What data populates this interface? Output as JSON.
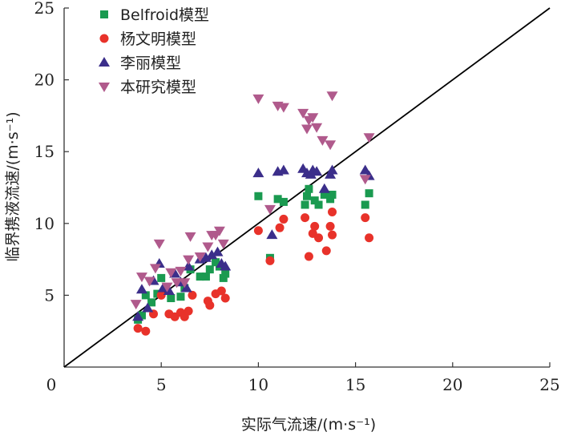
{
  "chart_data": {
    "type": "scatter",
    "xlabel": "实际气流速/(m·s⁻¹)",
    "ylabel": "临界携液流速/(m·s⁻¹)",
    "xlim": [
      0,
      25
    ],
    "ylim": [
      0,
      25
    ],
    "xticks": [
      "0",
      "5",
      "10",
      "15",
      "20",
      "25"
    ],
    "yticks": [
      "5",
      "10",
      "15",
      "20",
      "25"
    ],
    "legend_position": "top-left",
    "reference_line": {
      "type": "y=x",
      "color": "#000000"
    },
    "series": [
      {
        "name": "Belfroid模型",
        "marker": "square",
        "color": "#1a9a50",
        "points": [
          [
            3.8,
            3.3
          ],
          [
            4.0,
            3.6
          ],
          [
            4.2,
            5.0
          ],
          [
            4.5,
            4.5
          ],
          [
            4.8,
            5.1
          ],
          [
            5.0,
            6.2
          ],
          [
            5.5,
            4.8
          ],
          [
            6.0,
            4.9
          ],
          [
            6.2,
            5.5
          ],
          [
            6.5,
            6.8
          ],
          [
            7.0,
            6.3
          ],
          [
            7.3,
            6.3
          ],
          [
            7.5,
            6.8
          ],
          [
            7.8,
            7.3
          ],
          [
            8.0,
            7.0
          ],
          [
            8.2,
            6.2
          ],
          [
            8.3,
            6.5
          ],
          [
            10.0,
            11.9
          ],
          [
            10.6,
            7.6
          ],
          [
            11.0,
            11.7
          ],
          [
            11.3,
            11.5
          ],
          [
            12.4,
            11.3
          ],
          [
            12.5,
            11.9
          ],
          [
            12.6,
            12.4
          ],
          [
            12.9,
            11.6
          ],
          [
            13.1,
            11.3
          ],
          [
            13.4,
            12.0
          ],
          [
            13.7,
            11.7
          ],
          [
            13.8,
            12.0
          ],
          [
            15.5,
            11.3
          ],
          [
            15.7,
            12.1
          ]
        ]
      },
      {
        "name": "杨文明模型",
        "marker": "circle",
        "color": "#e8322a",
        "points": [
          [
            3.8,
            2.7
          ],
          [
            4.2,
            2.5
          ],
          [
            4.6,
            3.7
          ],
          [
            5.0,
            5.0
          ],
          [
            5.4,
            3.7
          ],
          [
            5.7,
            3.5
          ],
          [
            6.0,
            3.8
          ],
          [
            6.2,
            3.5
          ],
          [
            6.4,
            3.9
          ],
          [
            6.6,
            5.0
          ],
          [
            7.4,
            4.6
          ],
          [
            7.5,
            4.3
          ],
          [
            7.8,
            5.1
          ],
          [
            8.1,
            5.3
          ],
          [
            8.3,
            4.8
          ],
          [
            10.0,
            9.5
          ],
          [
            10.6,
            7.4
          ],
          [
            11.1,
            9.7
          ],
          [
            11.3,
            10.3
          ],
          [
            12.4,
            10.4
          ],
          [
            12.6,
            7.7
          ],
          [
            12.8,
            9.3
          ],
          [
            12.9,
            9.8
          ],
          [
            13.1,
            9.0
          ],
          [
            13.5,
            8.1
          ],
          [
            13.7,
            9.8
          ],
          [
            13.8,
            10.8
          ],
          [
            13.8,
            9.2
          ],
          [
            15.5,
            10.4
          ],
          [
            15.7,
            9.0
          ]
        ]
      },
      {
        "name": "李丽模型",
        "marker": "triangle-up",
        "color": "#3b2e8a",
        "points": [
          [
            3.8,
            3.5
          ],
          [
            4.0,
            5.4
          ],
          [
            4.3,
            4.1
          ],
          [
            4.6,
            6.0
          ],
          [
            4.9,
            7.2
          ],
          [
            5.1,
            5.5
          ],
          [
            5.4,
            5.3
          ],
          [
            5.7,
            6.5
          ],
          [
            6.0,
            5.9
          ],
          [
            6.3,
            5.5
          ],
          [
            6.4,
            7.0
          ],
          [
            7.0,
            7.5
          ],
          [
            7.3,
            7.6
          ],
          [
            7.6,
            7.8
          ],
          [
            7.9,
            8.0
          ],
          [
            8.1,
            7.2
          ],
          [
            8.3,
            7.0
          ],
          [
            10.0,
            13.5
          ],
          [
            10.7,
            9.2
          ],
          [
            11.0,
            13.6
          ],
          [
            11.3,
            13.7
          ],
          [
            12.3,
            13.8
          ],
          [
            12.5,
            13.5
          ],
          [
            12.7,
            13.4
          ],
          [
            12.8,
            13.7
          ],
          [
            13.0,
            13.6
          ],
          [
            13.4,
            12.4
          ],
          [
            13.7,
            13.4
          ],
          [
            13.8,
            13.7
          ],
          [
            15.5,
            13.7
          ],
          [
            15.7,
            13.3
          ]
        ]
      },
      {
        "name": "本研究模型",
        "marker": "triangle-down",
        "color": "#b05a8c",
        "points": [
          [
            3.7,
            4.4
          ],
          [
            4.0,
            6.3
          ],
          [
            4.4,
            6.0
          ],
          [
            4.7,
            6.9
          ],
          [
            4.9,
            8.6
          ],
          [
            5.3,
            5.6
          ],
          [
            5.5,
            6.6
          ],
          [
            5.8,
            5.9
          ],
          [
            6.0,
            6.7
          ],
          [
            6.2,
            5.9
          ],
          [
            6.4,
            7.5
          ],
          [
            6.5,
            9.1
          ],
          [
            7.0,
            7.7
          ],
          [
            7.4,
            8.4
          ],
          [
            7.6,
            9.2
          ],
          [
            7.8,
            9.2
          ],
          [
            8.0,
            9.5
          ],
          [
            8.2,
            8.6
          ],
          [
            10.0,
            18.7
          ],
          [
            10.6,
            11.0
          ],
          [
            11.0,
            18.2
          ],
          [
            11.3,
            18.1
          ],
          [
            12.3,
            17.7
          ],
          [
            12.5,
            16.6
          ],
          [
            12.6,
            17.2
          ],
          [
            12.8,
            17.4
          ],
          [
            13.0,
            16.7
          ],
          [
            13.3,
            15.8
          ],
          [
            13.7,
            15.5
          ],
          [
            13.8,
            18.9
          ],
          [
            15.5,
            13.1
          ],
          [
            15.7,
            16.0
          ]
        ]
      }
    ]
  }
}
